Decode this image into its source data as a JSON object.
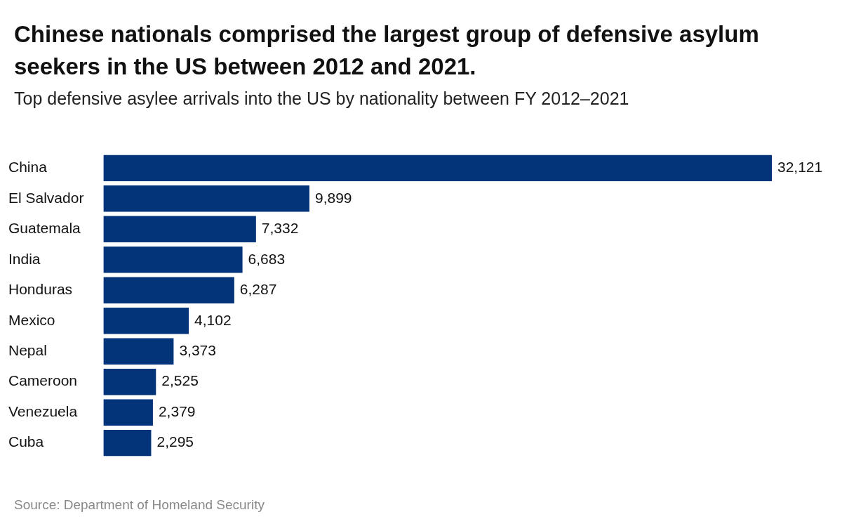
{
  "chart_data": {
    "type": "bar",
    "orientation": "horizontal",
    "title": "Chinese nationals comprised the largest group of defensive asylum seekers in the US between 2012 and 2021.",
    "subtitle": "Top defensive asylee arrivals into the US by nationality between FY 2012–2021",
    "categories": [
      "China",
      "El Salvador",
      "Guatemala",
      "India",
      "Honduras",
      "Mexico",
      "Nepal",
      "Cameroon",
      "Venezuela",
      "Cuba"
    ],
    "values": [
      32121,
      9899,
      7332,
      6683,
      6287,
      4102,
      3373,
      2525,
      2379,
      2295
    ],
    "value_labels": [
      "32,121",
      "9,899",
      "7,332",
      "6,683",
      "6,287",
      "4,102",
      "3,373",
      "2,525",
      "2,379",
      "2,295"
    ],
    "color": "#03347a",
    "annotations": [
      "Source: Department of Homeland Security"
    ]
  }
}
